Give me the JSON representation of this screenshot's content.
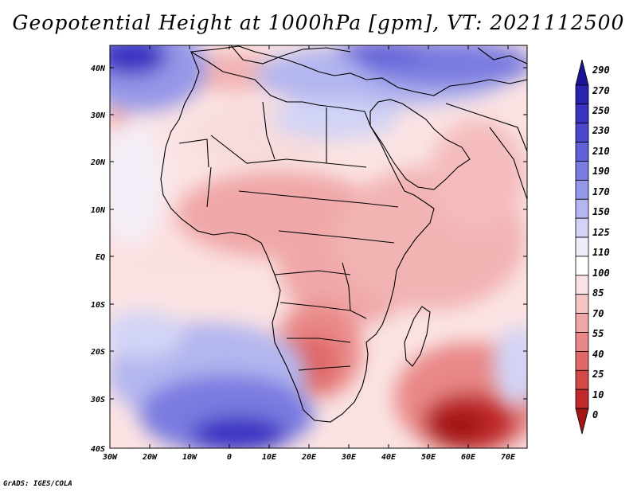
{
  "title": "Geopotential Height at 1000hPa [gpm], VT: 2021112500",
  "footer": "GrADS: IGES/COLA",
  "map": {
    "variable": "Geopotential Height",
    "level": "1000hPa",
    "units": "gpm",
    "valid_time": "2021112500",
    "lon_range": [
      -30,
      75
    ],
    "lat_range": [
      -40,
      45
    ],
    "lat_ticks": [
      "40N",
      "30N",
      "20N",
      "10N",
      "EQ",
      "10S",
      "20S",
      "30S",
      "40S"
    ],
    "lon_ticks": [
      "30W",
      "20W",
      "10W",
      "0",
      "10E",
      "20E",
      "30E",
      "40E",
      "50E",
      "60E",
      "70E"
    ]
  },
  "colorbar": {
    "labels": [
      "290",
      "270",
      "250",
      "230",
      "210",
      "190",
      "170",
      "150",
      "125",
      "110",
      "100",
      "85",
      "70",
      "55",
      "40",
      "25",
      "10",
      "0"
    ],
    "colors": [
      "#1a1496",
      "#2a23ad",
      "#3b33c2",
      "#4d46cf",
      "#6260d9",
      "#7a7be0",
      "#9597e8",
      "#b3b6ef",
      "#d2d4f6",
      "#ececfb",
      "#ffffff",
      "#fbe3e3",
      "#f6c6c6",
      "#f0a7a7",
      "#e98888",
      "#e06868",
      "#d44848",
      "#c12a2a",
      "#a31616"
    ]
  }
}
